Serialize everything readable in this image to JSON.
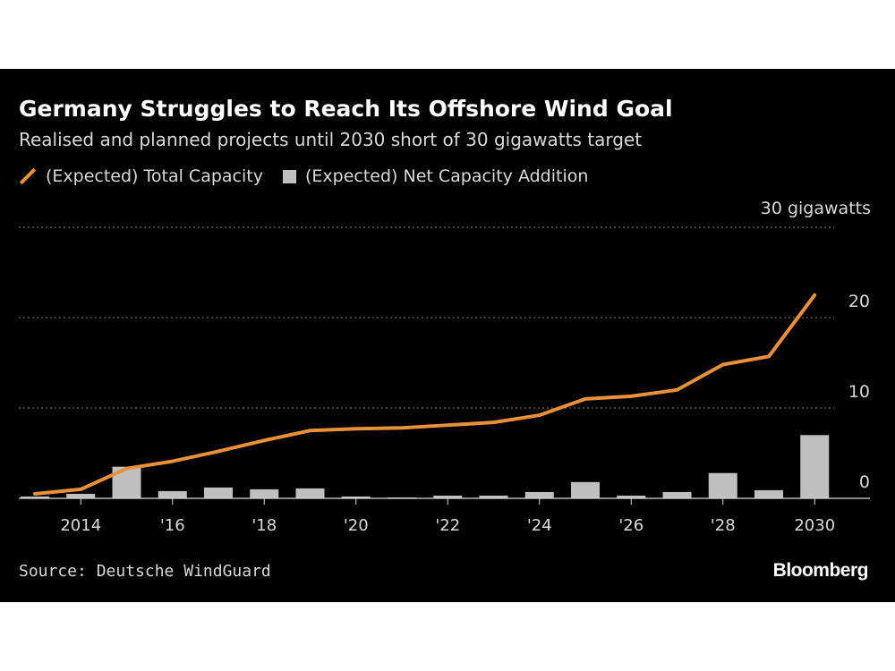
{
  "title": "Germany Struggles to Reach Its Offshore Wind Goal",
  "subtitle": "Realised and planned projects until 2030 short of 30 gigawatts target",
  "legend": {
    "line_label": "(Expected) Total Capacity",
    "bar_label": "(Expected) Net Capacity Addition"
  },
  "unit_label": "30 gigawatts",
  "source": "Source: Deutsche WindGuard",
  "brand": "Bloomberg",
  "colors": {
    "background": "#000000",
    "line": "#e8913a",
    "bars": "#bfbfbf",
    "grid": "#7f7f7f"
  },
  "chart_data": {
    "type": "bar+line",
    "years": [
      2013,
      2014,
      2015,
      2016,
      2017,
      2018,
      2019,
      2020,
      2021,
      2022,
      2023,
      2024,
      2025,
      2026,
      2027,
      2028,
      2029,
      2030
    ],
    "x_tick_labels": [
      {
        "year": 2014,
        "label": "2014"
      },
      {
        "year": 2016,
        "label": "'16"
      },
      {
        "year": 2018,
        "label": "'18"
      },
      {
        "year": 2020,
        "label": "'20"
      },
      {
        "year": 2022,
        "label": "'22"
      },
      {
        "year": 2024,
        "label": "'24"
      },
      {
        "year": 2026,
        "label": "'26"
      },
      {
        "year": 2028,
        "label": "'28"
      },
      {
        "year": 2030,
        "label": "2030"
      }
    ],
    "y_ticks": [
      {
        "value": 0,
        "label": "0"
      },
      {
        "value": 10,
        "label": "10"
      },
      {
        "value": 20,
        "label": "20"
      },
      {
        "value": 30,
        "label": ""
      }
    ],
    "ylim": [
      0,
      30
    ],
    "grid": true,
    "legend_position": "top-left",
    "series": [
      {
        "name": "(Expected) Total Capacity",
        "type": "line",
        "values": [
          0.5,
          1.0,
          3.3,
          4.1,
          5.2,
          6.4,
          7.5,
          7.7,
          7.8,
          8.1,
          8.4,
          9.2,
          11.0,
          11.3,
          12.0,
          14.8,
          15.7,
          22.5
        ]
      },
      {
        "name": "(Expected) Net Capacity Addition",
        "type": "bar",
        "values": [
          0.2,
          0.5,
          3.5,
          0.8,
          1.2,
          1.0,
          1.1,
          0.2,
          0.1,
          0.3,
          0.3,
          0.7,
          1.8,
          0.3,
          0.7,
          2.8,
          0.9,
          7.0
        ]
      }
    ]
  }
}
